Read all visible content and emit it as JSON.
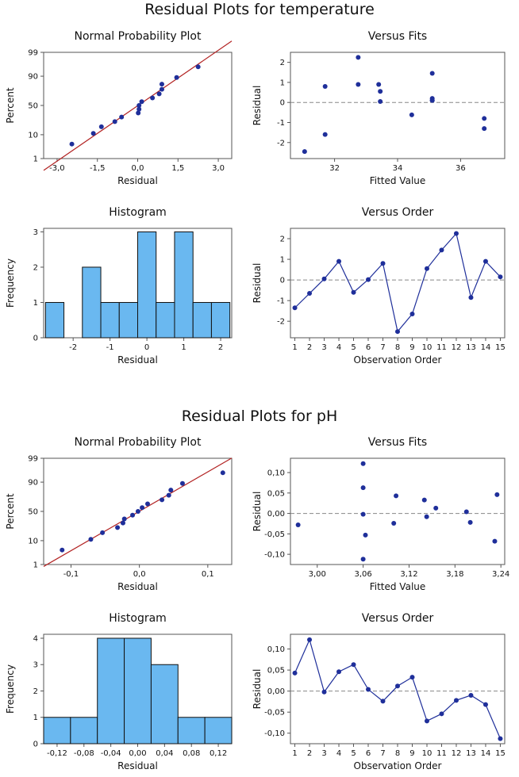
{
  "figures": [
    {
      "title": "Residual Plots for temperature",
      "panels": {
        "normal_probability": {
          "title": "Normal Probability Plot",
          "xlabel": "Residual",
          "ylabel": "Percent",
          "x_ticks": [
            "-3,0",
            "-1,5",
            "0,0",
            "1,5",
            "3,0"
          ],
          "y_ticks": [
            "1",
            "10",
            "50",
            "90",
            "99"
          ]
        },
        "versus_fits": {
          "title": "Versus Fits",
          "xlabel": "Fitted Value",
          "ylabel": "Residual",
          "x_ticks": [
            "32",
            "34",
            "36"
          ],
          "y_ticks": [
            "2",
            "1",
            "0",
            "-1",
            "-2"
          ]
        },
        "histogram": {
          "title": "Histogram",
          "xlabel": "Residual",
          "ylabel": "Frequency",
          "x_ticks": [
            "-2",
            "-1",
            "0",
            "1",
            "2"
          ],
          "y_ticks": [
            "0",
            "1",
            "2",
            "3"
          ]
        },
        "versus_order": {
          "title": "Versus Order",
          "xlabel": "Observation Order",
          "ylabel": "Residual",
          "x_ticks": [
            "1",
            "2",
            "3",
            "4",
            "5",
            "6",
            "7",
            "8",
            "9",
            "10",
            "11",
            "12",
            "13",
            "14",
            "15"
          ],
          "y_ticks": [
            "2",
            "1",
            "0",
            "-1",
            "-2"
          ]
        }
      }
    },
    {
      "title": "Residual Plots for pH",
      "panels": {
        "normal_probability": {
          "title": "Normal Probability Plot",
          "xlabel": "Residual",
          "ylabel": "Percent",
          "x_ticks": [
            "-0,1",
            "0,0",
            "0,1"
          ],
          "y_ticks": [
            "1",
            "10",
            "50",
            "90",
            "99"
          ]
        },
        "versus_fits": {
          "title": "Versus Fits",
          "xlabel": "Fitted Value",
          "ylabel": "Residual",
          "x_ticks": [
            "3,00",
            "3,06",
            "3,12",
            "3,18",
            "3,24"
          ],
          "y_ticks": [
            "0,10",
            "0,05",
            "0,00",
            "-0,05",
            "-0,10"
          ]
        },
        "histogram": {
          "title": "Histogram",
          "xlabel": "Residual",
          "ylabel": "Frequency",
          "x_ticks": [
            "-0,12",
            "-0,08",
            "-0,04",
            "0,00",
            "0,04",
            "0,08",
            "0,12"
          ],
          "y_ticks": [
            "0",
            "1",
            "2",
            "3",
            "4"
          ]
        },
        "versus_order": {
          "title": "Versus Order",
          "xlabel": "Observation Order",
          "ylabel": "Residual",
          "x_ticks": [
            "1",
            "2",
            "3",
            "4",
            "5",
            "6",
            "7",
            "8",
            "9",
            "10",
            "11",
            "12",
            "13",
            "14",
            "15"
          ],
          "y_ticks": [
            "0,10",
            "0,05",
            "0,00",
            "-0,05",
            "-0,10"
          ]
        }
      }
    }
  ],
  "chart_data": [
    {
      "type": "scatter",
      "figure": "Residual Plots for temperature",
      "title": "Normal Probability Plot",
      "xlabel": "Residual",
      "ylabel": "Percent",
      "xlim": [
        -3.5,
        3.5
      ],
      "ylim_percent": [
        1,
        99
      ],
      "residuals": [
        -1.35,
        0.05,
        0.9,
        -0.6,
        0.02,
        0.8,
        -2.45,
        -1.65,
        0.55,
        1.45,
        2.25,
        -0.85,
        0.9,
        0.15,
        0.05
      ],
      "fit_line": "normal reference line"
    },
    {
      "type": "scatter",
      "figure": "Residual Plots for temperature",
      "title": "Versus Fits",
      "xlabel": "Fitted Value",
      "ylabel": "Residual",
      "xlim": [
        30.6,
        37.4
      ],
      "ylim": [
        -2.8,
        2.5
      ],
      "reference_line": 0,
      "x": [
        31.05,
        31.7,
        31.7,
        32.75,
        32.75,
        33.4,
        33.45,
        33.45,
        34.45,
        35.1,
        35.1,
        35.1,
        35.1,
        36.75,
        36.75
      ],
      "y": [
        -2.45,
        -1.6,
        0.8,
        2.25,
        0.9,
        0.9,
        0.55,
        0.05,
        -0.62,
        1.45,
        0.2,
        0.1,
        0.1,
        -0.8,
        -1.3
      ]
    },
    {
      "type": "bar",
      "figure": "Residual Plots for temperature",
      "title": "Histogram",
      "xlabel": "Residual",
      "ylabel": "Frequency",
      "xlim": [
        -2.8,
        2.3
      ],
      "ylim": [
        0,
        3.1
      ],
      "bin_start": -2.75,
      "bin_width": 0.5,
      "values": [
        1,
        0,
        2,
        1,
        1,
        3,
        1,
        3,
        1,
        1
      ]
    },
    {
      "type": "line",
      "figure": "Residual Plots for temperature",
      "title": "Versus Order",
      "xlabel": "Observation Order",
      "ylabel": "Residual",
      "xlim": [
        0.7,
        15.3
      ],
      "ylim": [
        -2.8,
        2.5
      ],
      "reference_line": 0,
      "x": [
        1,
        2,
        3,
        4,
        5,
        6,
        7,
        8,
        9,
        10,
        11,
        12,
        13,
        14,
        15
      ],
      "y": [
        -1.35,
        -0.65,
        0.05,
        0.9,
        -0.6,
        0.02,
        0.8,
        -2.5,
        -1.65,
        0.55,
        1.45,
        2.25,
        -0.85,
        0.9,
        0.15
      ]
    },
    {
      "type": "scatter",
      "figure": "Residual Plots for pH",
      "title": "Normal Probability Plot",
      "xlabel": "Residual",
      "ylabel": "Percent",
      "xlim": [
        -0.14,
        0.135
      ],
      "ylim_percent": [
        1,
        99
      ],
      "residuals": [
        0.043,
        0.122,
        -0.002,
        0.046,
        0.063,
        0.004,
        -0.024,
        0.012,
        0.033,
        -0.071,
        -0.054,
        -0.022,
        -0.01,
        -0.032,
        -0.113
      ],
      "fit_line": "normal reference line"
    },
    {
      "type": "scatter",
      "figure": "Residual Plots for pH",
      "title": "Versus Fits",
      "xlabel": "Fitted Value",
      "ylabel": "Residual",
      "xlim": [
        2.965,
        3.245
      ],
      "ylim": [
        -0.125,
        0.135
      ],
      "reference_line": 0,
      "x": [
        2.975,
        3.06,
        3.06,
        3.06,
        3.063,
        3.06,
        3.1,
        3.103,
        3.14,
        3.143,
        3.155,
        3.195,
        3.2,
        3.232,
        3.235
      ],
      "y": [
        -0.028,
        0.122,
        0.063,
        -0.002,
        -0.053,
        -0.112,
        -0.024,
        0.043,
        0.033,
        -0.008,
        0.013,
        0.004,
        -0.022,
        -0.068,
        0.046
      ]
    },
    {
      "type": "bar",
      "figure": "Residual Plots for pH",
      "title": "Histogram",
      "xlabel": "Residual",
      "ylabel": "Frequency",
      "xlim": [
        -0.14,
        0.14
      ],
      "ylim": [
        0,
        4.15
      ],
      "bin_start": -0.14,
      "bin_width": 0.04,
      "values": [
        1,
        1,
        4,
        4,
        3,
        1,
        1
      ]
    },
    {
      "type": "line",
      "figure": "Residual Plots for pH",
      "title": "Versus Order",
      "xlabel": "Observation Order",
      "ylabel": "Residual",
      "xlim": [
        0.7,
        15.3
      ],
      "ylim": [
        -0.125,
        0.135
      ],
      "reference_line": 0,
      "x": [
        1,
        2,
        3,
        4,
        5,
        6,
        7,
        8,
        9,
        10,
        11,
        12,
        13,
        14,
        15
      ],
      "y": [
        0.043,
        0.122,
        -0.002,
        0.046,
        0.063,
        0.004,
        -0.024,
        0.012,
        0.033,
        -0.071,
        -0.054,
        -0.022,
        -0.01,
        -0.032,
        -0.113
      ]
    }
  ],
  "colors": {
    "point": "#1f2f9a",
    "bar_fill": "#6ab8f0",
    "bar_stroke": "#111111",
    "fit_line": "#b22222",
    "ref_line": "#888888",
    "axis": "#555555"
  }
}
